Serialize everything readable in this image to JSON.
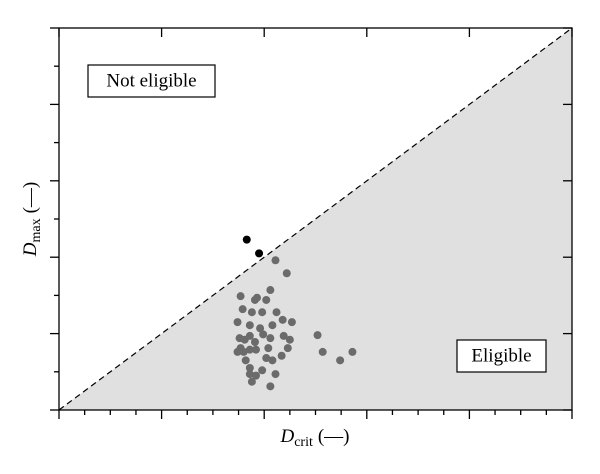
{
  "chart_data": {
    "type": "scatter",
    "xlabel": {
      "symbol": "D",
      "subscript": "crit",
      "unit": "(—)"
    },
    "ylabel": {
      "symbol": "D",
      "subscript": "max",
      "unit": "(—)"
    },
    "xlim": [
      0,
      5
    ],
    "ylim": [
      0,
      5
    ],
    "xticks": [
      0,
      1,
      2,
      3,
      4,
      5
    ],
    "yticks": [
      0,
      1,
      2,
      3,
      4,
      5
    ],
    "xminorticks": [
      0.25,
      0.5,
      0.75,
      1.25,
      1.5,
      1.75,
      2.25,
      2.5,
      2.75,
      3.25,
      3.5,
      3.75,
      4.25,
      4.5,
      4.75
    ],
    "yminorticks": [
      0.5,
      1.5,
      2.5,
      3.5,
      4.5
    ],
    "region_color": "#e0e0e0",
    "annotations": [
      "Not eligible",
      "Eligible"
    ],
    "series": [
      {
        "color": "#000000",
        "x": [
          1.83,
          1.95
        ],
        "y": [
          2.23,
          2.05
        ]
      },
      {
        "color": "#6b6b6b",
        "x": [
          2.11,
          2.22,
          2.06,
          1.77,
          1.93,
          1.91,
          2.02,
          1.79,
          1.88,
          1.98,
          2.12,
          2.18,
          1.74,
          1.86,
          1.96,
          2.08,
          2.27,
          1.86,
          1.99,
          2.19,
          1.76,
          1.81,
          1.91,
          2.06,
          2.25,
          2.52,
          1.77,
          1.86,
          2.04,
          2.23,
          1.8,
          1.74,
          1.92,
          2.17,
          2.02,
          1.82,
          2.08,
          2.57,
          2.74,
          2.86,
          1.86,
          1.98,
          1.92,
          2.11,
          1.88,
          1.86,
          2.06
        ],
        "y": [
          1.96,
          1.79,
          1.57,
          1.49,
          1.47,
          1.44,
          1.44,
          1.32,
          1.28,
          1.28,
          1.28,
          1.18,
          1.15,
          1.11,
          1.07,
          1.11,
          1.15,
          0.97,
          0.99,
          0.97,
          0.94,
          0.92,
          0.89,
          0.94,
          0.92,
          0.98,
          0.81,
          0.79,
          0.81,
          0.81,
          0.76,
          0.76,
          0.79,
          0.71,
          0.68,
          0.65,
          0.65,
          0.76,
          0.65,
          0.76,
          0.55,
          0.52,
          0.45,
          0.47,
          0.37,
          0.47,
          0.31
        ]
      }
    ]
  }
}
